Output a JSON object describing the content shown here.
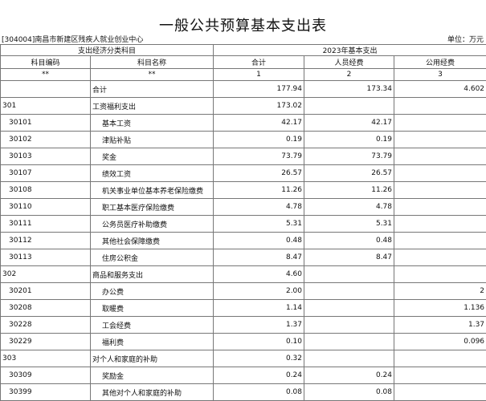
{
  "title": "一般公共预算基本支出表",
  "unit_name": "[304004]南昌市新建区残疾人就业创业中心",
  "unit_label": "单位：万元",
  "header": {
    "group1": "支出经济分类科目",
    "group2": "2023年基本支出",
    "code": "科目编码",
    "name": "科目名称",
    "total": "合计",
    "personnel": "人员经费",
    "public": "公用经费",
    "code_idx": "**",
    "name_idx": "**",
    "total_idx": "1",
    "personnel_idx": "2",
    "public_idx": "3"
  },
  "rows": [
    {
      "code": "",
      "name": "合计",
      "total": "177.94",
      "personnel": "173.34",
      "public": "4.602",
      "level": 0
    },
    {
      "code": "301",
      "name": "工资福利支出",
      "total": "173.02",
      "personnel": "",
      "public": "",
      "level": 1
    },
    {
      "code": "30101",
      "name": "基本工资",
      "total": "42.17",
      "personnel": "42.17",
      "public": "",
      "level": 2
    },
    {
      "code": "30102",
      "name": "津贴补贴",
      "total": "0.19",
      "personnel": "0.19",
      "public": "",
      "level": 2
    },
    {
      "code": "30103",
      "name": "奖金",
      "total": "73.79",
      "personnel": "73.79",
      "public": "",
      "level": 2
    },
    {
      "code": "30107",
      "name": "绩效工资",
      "total": "26.57",
      "personnel": "26.57",
      "public": "",
      "level": 2
    },
    {
      "code": "30108",
      "name": "机关事业单位基本养老保险缴费",
      "total": "11.26",
      "personnel": "11.26",
      "public": "",
      "level": 2
    },
    {
      "code": "30110",
      "name": "职工基本医疗保险缴费",
      "total": "4.78",
      "personnel": "4.78",
      "public": "",
      "level": 2
    },
    {
      "code": "30111",
      "name": "公务员医疗补助缴费",
      "total": "5.31",
      "personnel": "5.31",
      "public": "",
      "level": 2
    },
    {
      "code": "30112",
      "name": "其他社会保障缴费",
      "total": "0.48",
      "personnel": "0.48",
      "public": "",
      "level": 2
    },
    {
      "code": "30113",
      "name": "住房公积金",
      "total": "8.47",
      "personnel": "8.47",
      "public": "",
      "level": 2
    },
    {
      "code": "302",
      "name": "商品和服务支出",
      "total": "4.60",
      "personnel": "",
      "public": "",
      "level": 1
    },
    {
      "code": "30201",
      "name": "办公费",
      "total": "2.00",
      "personnel": "",
      "public": "2",
      "level": 2
    },
    {
      "code": "30208",
      "name": "取暖费",
      "total": "1.14",
      "personnel": "",
      "public": "1.136",
      "level": 2
    },
    {
      "code": "30228",
      "name": "工会经费",
      "total": "1.37",
      "personnel": "",
      "public": "1.37",
      "level": 2
    },
    {
      "code": "30229",
      "name": "福利费",
      "total": "0.10",
      "personnel": "",
      "public": "0.096",
      "level": 2
    },
    {
      "code": "303",
      "name": "对个人和家庭的补助",
      "total": "0.32",
      "personnel": "",
      "public": "",
      "level": 1
    },
    {
      "code": "30309",
      "name": "奖励金",
      "total": "0.24",
      "personnel": "0.24",
      "public": "",
      "level": 2
    },
    {
      "code": "30399",
      "name": "其他对个人和家庭的补助",
      "total": "0.08",
      "personnel": "0.08",
      "public": "",
      "level": 2
    }
  ]
}
